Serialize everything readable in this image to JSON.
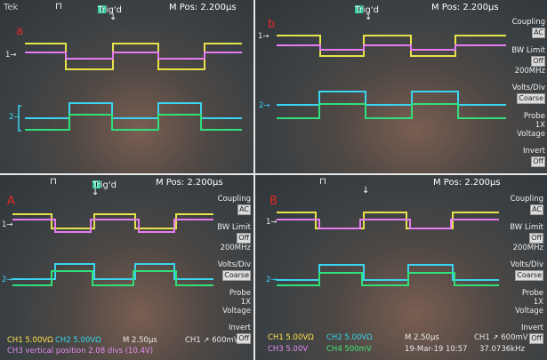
{
  "colors": {
    "ch1": "#e8e24a",
    "ch2": "#3ad4f0",
    "ch3": "#e57cf2",
    "ch4": "#30e07a",
    "label": "#e62828"
  },
  "common": {
    "brand": "Tek",
    "trigger_state": "Trig'd",
    "m_pos": "M Pos: 2.200µs",
    "ch1_marker": "1→",
    "ch2_marker": "2→"
  },
  "panels": {
    "a": {
      "label": "a"
    },
    "b": {
      "label": "b",
      "menu": {
        "coupling": "Coupling",
        "coupling_val": "AC",
        "bw": "BW Limit",
        "bw_val1": "Off",
        "bw_val2": "200MHz",
        "voltsdiv": "Volts/Div",
        "voltsdiv_val": "Coarse",
        "probe": "Probe",
        "probe_val1": "1X",
        "probe_val2": "Voltage",
        "invert": "Invert",
        "invert_val": "Off"
      }
    },
    "A": {
      "label": "A",
      "menu": {
        "coupling": "Coupling",
        "coupling_val": "AC",
        "bw": "BW Limit",
        "bw_val1": "Off",
        "bw_val2": "200MHz",
        "voltsdiv": "Volts/Div",
        "voltsdiv_val": "Coarse",
        "probe": "Probe",
        "probe_val1": "1X",
        "probe_val2": "Voltage",
        "invert": "Invert",
        "invert_val": "Off"
      },
      "status": {
        "ch1": "CH1  5.00VΩ",
        "ch2": "CH2  5.00VΩ",
        "timebase": "M 2.50µs",
        "trigger": "CH1 ↗ 600mV",
        "message": "CH3 vertical position 2.08 divs (10.4V)"
      }
    },
    "B": {
      "label": "B",
      "menu": {
        "coupling": "Coupling",
        "coupling_val": "AC",
        "bw": "BW Limit",
        "bw_val1": "Off",
        "bw_val2": "200MHz",
        "voltsdiv": "Volts/Div",
        "voltsdiv_val": "Coarse",
        "probe": "Probe",
        "probe_val1": "1X",
        "probe_val2": "Voltage",
        "invert": "Invert",
        "invert_val": "Off"
      },
      "status": {
        "ch1": "CH1  5.00VΩ",
        "ch2": "CH2  5.00VΩ",
        "timebase": "M 2.50µs",
        "trigger": "CH1 ↗ 600mV",
        "ch3": "CH3  5.00V",
        "ch4": "CH4  500mV",
        "datetime": "19-Mar-19 10:57",
        "frequency": "37.0736kHz"
      }
    }
  }
}
